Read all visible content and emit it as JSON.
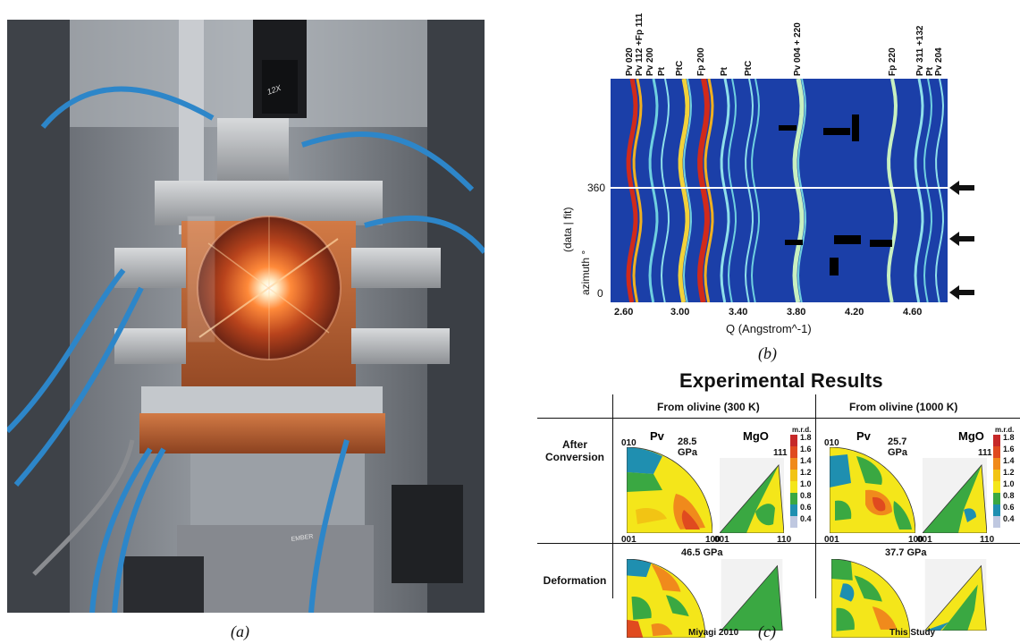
{
  "captions": {
    "a": "(a)",
    "b": "(b)",
    "c": "(c)"
  },
  "photo": {
    "lens_label": "12X",
    "stage_label": "EMBER"
  },
  "panel_b": {
    "peak_labels": [
      "Pv 020",
      "Pv 112 +Fp 111",
      "Pv 200",
      "Pt",
      "PtC",
      "Fp 200",
      "Pt",
      "PtC",
      "Pv 004 + 220",
      "Fp 220",
      "Pv 311 +132",
      "Pt",
      "Pv 204"
    ],
    "y_axis_label": "(data | fit)",
    "y_axis_label2": "azimuth °",
    "y_ticks": [
      "360",
      "0"
    ],
    "x_ticks": [
      "2.60",
      "3.00",
      "3.40",
      "3.80",
      "4.20",
      "4.60"
    ],
    "x_axis_label": "Q (Angstrom^-1)"
  },
  "panel_c": {
    "title": "Experimental Results",
    "col_headers": [
      "From olivine (300 K)",
      "From olivine (1000 K)"
    ],
    "row_labels": [
      "After Conversion",
      "Deformation"
    ],
    "pv_label": "Pv",
    "mgo_label": "MgO",
    "pressures": [
      "28.5 GPa",
      "25.7 GPa",
      "46.5 GPa",
      "37.7 GPa"
    ],
    "axis_labels": {
      "a": "010",
      "b": "001",
      "c": "100",
      "d": "111",
      "e": "001",
      "f": "110"
    },
    "colorbar_title": "m.r.d.",
    "colorbar_values": [
      "1.8",
      "1.6",
      "1.4",
      "1.2",
      "1.0",
      "0.8",
      "0.6",
      "0.4"
    ],
    "colorbar_colors": [
      "#c62828",
      "#e04a1f",
      "#f08a1c",
      "#f2c414",
      "#f4e61a",
      "#3aa842",
      "#1f8fb0",
      "#bfc8e0"
    ],
    "footers": [
      "Miyagi 2010",
      "This Study"
    ]
  }
}
